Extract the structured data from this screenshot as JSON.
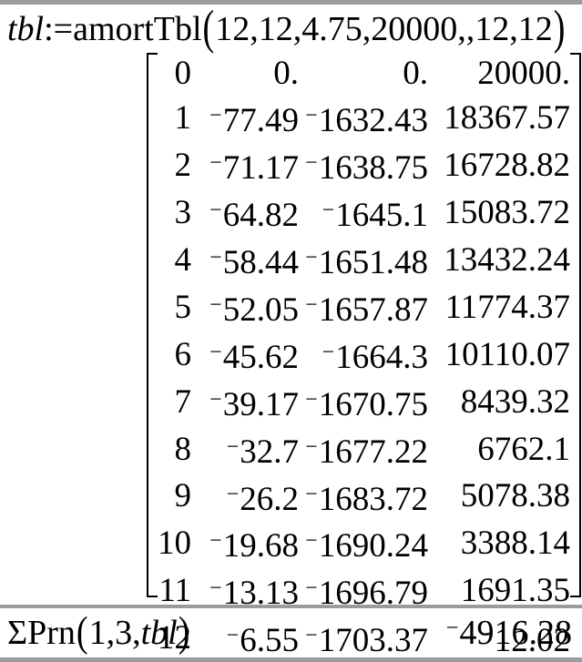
{
  "colors": {
    "divider": "#9b9b9b",
    "text": "#000000",
    "background": "#ffffff"
  },
  "input_line": {
    "var": "tbl",
    "assign": ":=",
    "func": "amortTbl",
    "open_paren": "(",
    "args": "12,12,4.75,20000,,12,12",
    "close_paren": ")"
  },
  "matrix": {
    "rows": [
      [
        "0",
        "0.",
        "0.",
        "20000."
      ],
      [
        "1",
        "-77.49",
        "-1632.43",
        "18367.57"
      ],
      [
        "2",
        "-71.17",
        "-1638.75",
        "16728.82"
      ],
      [
        "3",
        "-64.82",
        "-1645.1",
        "15083.72"
      ],
      [
        "4",
        "-58.44",
        "-1651.48",
        "13432.24"
      ],
      [
        "5",
        "-52.05",
        "-1657.87",
        "11774.37"
      ],
      [
        "6",
        "-45.62",
        "-1664.3",
        "10110.07"
      ],
      [
        "7",
        "-39.17",
        "-1670.75",
        "8439.32"
      ],
      [
        "8",
        "-32.7",
        "-1677.22",
        "6762.1"
      ],
      [
        "9",
        "-26.2",
        "-1683.72",
        "5078.38"
      ],
      [
        "10",
        "-19.68",
        "-1690.24",
        "3388.14"
      ],
      [
        "11",
        "-13.13",
        "-1696.79",
        "1691.35"
      ],
      [
        "12",
        "-6.55",
        "-1703.37",
        "-12.02"
      ]
    ]
  },
  "output_line": {
    "func": "ΣPrn",
    "open_paren": "(",
    "args": "1,3,",
    "arg_var": "tbl",
    "close_paren": ")",
    "result": "-4916.28"
  }
}
